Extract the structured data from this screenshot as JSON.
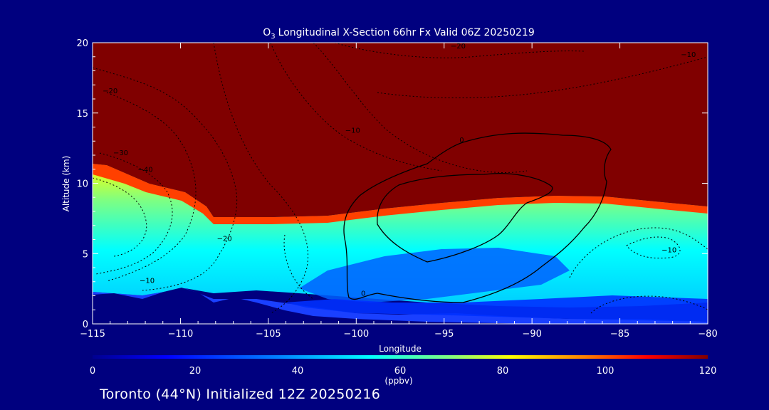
{
  "chart_data": {
    "type": "heatmap",
    "title_main": "Longitudinal X-Section 66hr  Fx Valid 06Z 20250219",
    "title_species": "O",
    "title_sub": "3",
    "xlabel": "Longitude",
    "ylabel": "Altitude (km)",
    "xlim": [
      -115,
      -80
    ],
    "ylim": [
      0,
      20
    ],
    "x_ticks": [
      -115,
      -110,
      -105,
      -100,
      -95,
      -90,
      -85,
      -80
    ],
    "x_tick_labels": [
      "−115",
      "−110",
      "−105",
      "−100",
      "−95",
      "−90",
      "−85",
      "−80"
    ],
    "y_ticks": [
      0,
      5,
      10,
      15,
      20
    ],
    "y_tick_labels": [
      "0",
      "5",
      "10",
      "15",
      "20"
    ],
    "colorbar": {
      "label": "(ppbv)",
      "range": [
        0,
        120
      ],
      "ticks": [
        0,
        20,
        40,
        60,
        80,
        100,
        120
      ],
      "tick_labels": [
        "0",
        "20",
        "40",
        "60",
        "80",
        "100",
        "120"
      ],
      "colors": [
        "#00008f",
        "#0000ff",
        "#0080ff",
        "#00ffff",
        "#80ff80",
        "#ffff00",
        "#ff8000",
        "#ff0000",
        "#800000"
      ]
    },
    "tropopause_height_km": [
      {
        "lon": -115,
        "alt": 11.2
      },
      {
        "lon": -113,
        "alt": 10.8
      },
      {
        "lon": -112,
        "alt": 10.0
      },
      {
        "lon": -110,
        "alt": 9.6
      },
      {
        "lon": -108.5,
        "alt": 8.5
      },
      {
        "lon": -108,
        "alt": 7.6
      },
      {
        "lon": -104,
        "alt": 7.7
      },
      {
        "lon": -101,
        "alt": 7.9
      },
      {
        "lon": -98,
        "alt": 8.3
      },
      {
        "lon": -94,
        "alt": 8.7
      },
      {
        "lon": -90,
        "alt": 9.0
      },
      {
        "lon": -86,
        "alt": 9.0
      },
      {
        "lon": -80,
        "alt": 8.2
      }
    ],
    "contour_labels": [
      {
        "text": "−20",
        "lon": -114,
        "alt": 16.4
      },
      {
        "text": "−30",
        "lon": -113.4,
        "alt": 12.0
      },
      {
        "text": "−40",
        "lon": -112,
        "alt": 10.8
      },
      {
        "text": "−20",
        "lon": -107.5,
        "alt": 5.9
      },
      {
        "text": "−10",
        "lon": -111.9,
        "alt": 2.9
      },
      {
        "text": "−10",
        "lon": -100.2,
        "alt": 13.6
      },
      {
        "text": "−20",
        "lon": -94.2,
        "alt": 19.6
      },
      {
        "text": "−10",
        "lon": -81.1,
        "alt": 19.0
      },
      {
        "text": "−10",
        "lon": -82.2,
        "alt": 5.1
      },
      {
        "text": "0",
        "lon": -94,
        "alt": 12.9
      },
      {
        "text": "0",
        "lon": -99.6,
        "alt": 2.0
      }
    ]
  },
  "footer": {
    "text": "Toronto (44°N) Initialized 12Z 20250216"
  }
}
